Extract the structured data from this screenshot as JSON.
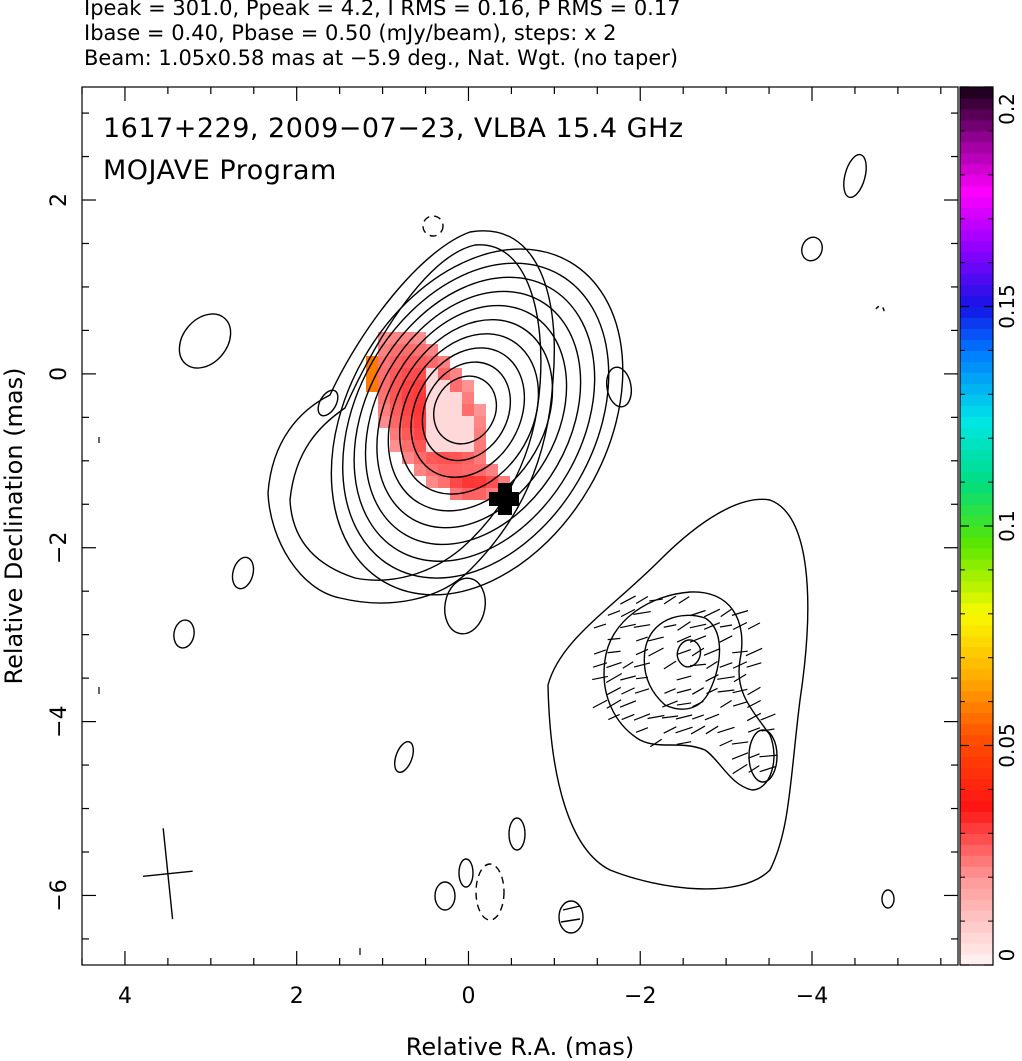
{
  "header": {
    "line1": "Ipeak = 301.0, Ppeak = 4.2, I RMS = 0.16, P RMS = 0.17",
    "line2": "Ibase = 0.40, Pbase = 0.50 (mJy/beam), steps: x 2",
    "line3": "Beam: 1.05x0.58 mas at −5.9 deg., Nat. Wgt. (no taper)"
  },
  "panel": {
    "title_line1": "1617+229, 2009−07−23, VLBA 15.4 GHz",
    "title_line2": "MOJAVE Program"
  },
  "chart_data": {
    "type": "heatmap",
    "xlabel": "Relative R.A. (mas)",
    "ylabel": "Relative Declination (mas)",
    "xlim": [
      4.5,
      -5.7
    ],
    "ylim": [
      -6.8,
      3.3
    ],
    "xticks": [
      4,
      2,
      0,
      -2,
      -4
    ],
    "xtick_labels": [
      "4",
      "2",
      "0",
      "−2",
      "−4"
    ],
    "yticks": [
      2,
      0,
      -2,
      -4,
      -6
    ],
    "ytick_labels": [
      "2",
      "0",
      "−2",
      "−4",
      "−6"
    ],
    "colorbar": {
      "min": 0,
      "max": 0.2,
      "ticks": [
        0,
        0.05,
        0.1,
        0.15,
        0.2
      ],
      "tick_labels": [
        "0",
        "0.05",
        "0.1",
        "0.15",
        "0.2"
      ]
    },
    "contours": {
      "core_center": [
        -0.1,
        -0.3
      ],
      "core_levels": 10,
      "jet_knot_center": [
        -2.4,
        -3.3
      ]
    },
    "beam": {
      "major_mas": 1.05,
      "minor_mas": 0.58,
      "pa_deg": -5.9,
      "center": [
        3.5,
        -5.75
      ]
    },
    "polarization_fraction_map": {
      "description_regions": "core region",
      "dominant_value": 0.03
    }
  }
}
